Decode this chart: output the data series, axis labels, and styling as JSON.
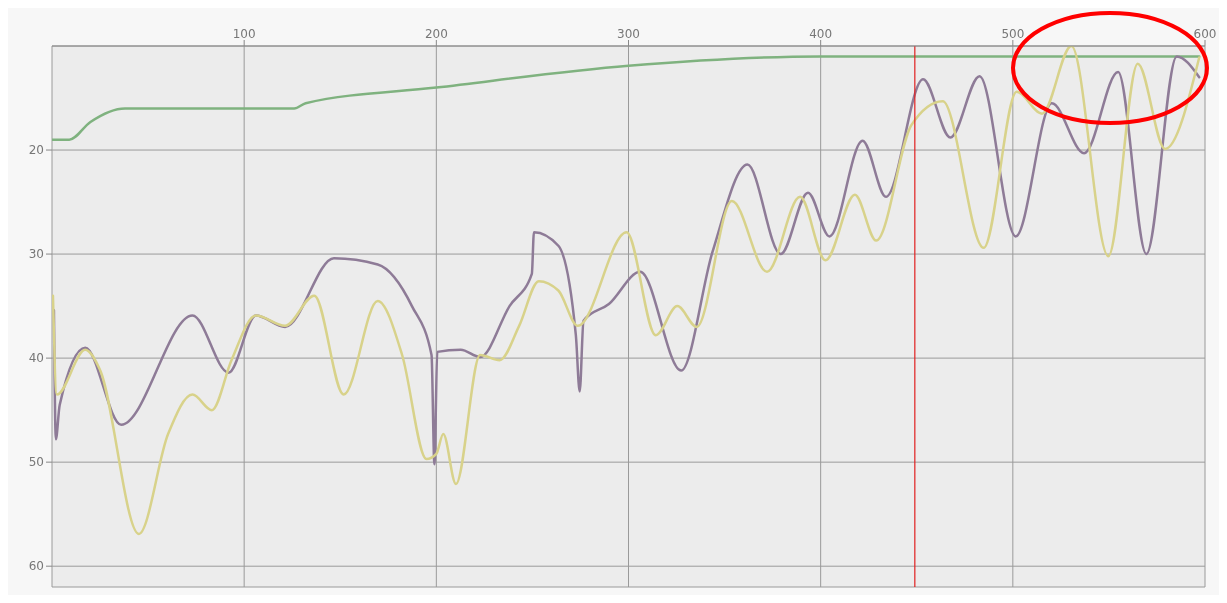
{
  "chart_data": {
    "type": "line",
    "xlim": [
      0,
      600
    ],
    "xticks": [
      100,
      200,
      300,
      400,
      500,
      600
    ],
    "ylim": [
      62,
      10
    ],
    "yticks": [
      20,
      30,
      40,
      50,
      60
    ],
    "grid": true,
    "marker": "none",
    "line_style": "solid",
    "series": [
      {
        "color": "#7fb27f",
        "x": [
          0,
          9,
          20,
          38,
          126,
          132,
          200,
          300,
          400,
          597
        ],
        "values": [
          19,
          19,
          17.3,
          16,
          16,
          15.5,
          14,
          11.9,
          11,
          11
        ]
      },
      {
        "color": "#8e7b97",
        "x": [
          1,
          2,
          4,
          17.3,
          36,
          73.1,
          91.9,
          106.1,
          121.3,
          146.7,
          169.5,
          187.3,
          197.5,
          199,
          200.5,
          212.7,
          222.8,
          238.1,
          249.7,
          250.8,
          263.5,
          272.6,
          274.6,
          276.6,
          289.8,
          306.1,
          327.4,
          343.7,
          361.9,
          379.2,
          393.4,
          404.6,
          421.8,
          434,
          453.3,
          467.5,
          482.7,
          501.5,
          520.3,
          537.1,
          554.8,
          569.5,
          585.3,
          597
        ],
        "values": [
          35.4,
          47.8,
          44.5,
          39,
          46.4,
          35.9,
          41.4,
          35.9,
          37,
          30.4,
          31,
          35,
          39.7,
          50.2,
          39.4,
          39.2,
          39.9,
          35,
          31.9,
          27.9,
          29.2,
          37.8,
          43.2,
          36.4,
          34.8,
          31.7,
          41.2,
          29.8,
          21.4,
          30,
          24.1,
          28.3,
          19.1,
          24.5,
          13.2,
          18.8,
          12.9,
          28.3,
          15.5,
          20.3,
          12.5,
          30,
          11,
          13
        ]
      },
      {
        "color": "#d8d28a",
        "x": [
          0.5,
          2.5,
          17.3,
          24.9,
          45.2,
          60.4,
          73.1,
          83.2,
          93.4,
          106.1,
          121.3,
          136.5,
          151.8,
          169.5,
          182.2,
          194.9,
          200,
          203.6,
          210.2,
          222.8,
          233,
          243.1,
          253.3,
          263.5,
          273.6,
          299,
          314.2,
          325.4,
          335.5,
          353.8,
          372.1,
          389.3,
          402.5,
          417.8,
          428.9,
          447.2,
          463.5,
          484.8,
          502,
          515.2,
          530.5,
          549.7,
          565,
          579.2,
          597
        ],
        "values": [
          34,
          43.5,
          39.2,
          41.1,
          56.9,
          47.3,
          43.5,
          45,
          40.2,
          35.9,
          36.9,
          34,
          43.5,
          34.5,
          39.7,
          49.7,
          49.2,
          47.3,
          52.1,
          39.7,
          40.2,
          36.9,
          32.6,
          33.5,
          36.9,
          27.9,
          37.8,
          35,
          37,
          24.9,
          31.7,
          24.5,
          30.6,
          24.3,
          28.7,
          17.6,
          15.3,
          29.4,
          14.4,
          16.5,
          10,
          30.2,
          11.7,
          19.9,
          11.1
        ]
      }
    ],
    "ref_lines": [
      {
        "axis": "x",
        "value": 449,
        "color": "#e02020"
      }
    ]
  }
}
